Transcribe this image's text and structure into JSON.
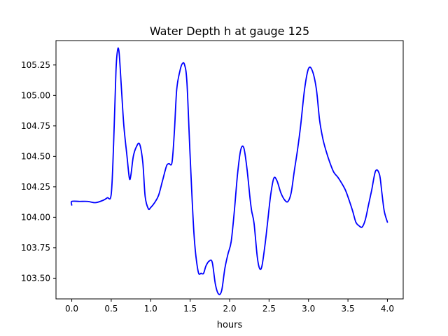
{
  "chart_data": {
    "type": "line",
    "title": "Water Depth h at gauge 125",
    "xlabel": "hours",
    "ylabel": "",
    "xlim": [
      -0.2,
      4.2
    ],
    "ylim": [
      103.33,
      105.45
    ],
    "xticks": [
      0.0,
      0.5,
      1.0,
      1.5,
      2.0,
      2.5,
      3.0,
      3.5,
      4.0
    ],
    "xtick_labels": [
      "0.0",
      "0.5",
      "1.0",
      "1.5",
      "2.0",
      "2.5",
      "3.0",
      "3.5",
      "4.0"
    ],
    "yticks": [
      103.5,
      103.75,
      104.0,
      104.25,
      104.5,
      104.75,
      105.0,
      105.25
    ],
    "ytick_labels": [
      "103.50",
      "103.75",
      "104.00",
      "104.25",
      "104.50",
      "104.75",
      "105.00",
      "105.25"
    ],
    "grid": false,
    "series": [
      {
        "color": "#0000ff",
        "x": [
          0.0,
          0.0,
          0.1,
          0.2,
          0.3,
          0.4,
          0.45,
          0.5,
          0.53,
          0.56,
          0.58,
          0.6,
          0.63,
          0.66,
          0.7,
          0.73,
          0.75,
          0.78,
          0.82,
          0.86,
          0.9,
          0.93,
          0.97,
          1.0,
          1.05,
          1.1,
          1.15,
          1.2,
          1.23,
          1.27,
          1.3,
          1.33,
          1.37,
          1.4,
          1.43,
          1.46,
          1.5,
          1.55,
          1.6,
          1.64,
          1.67,
          1.7,
          1.74,
          1.78,
          1.82,
          1.86,
          1.9,
          1.94,
          1.98,
          2.02,
          2.06,
          2.1,
          2.14,
          2.18,
          2.22,
          2.26,
          2.28,
          2.31,
          2.35,
          2.38,
          2.41,
          2.45,
          2.48,
          2.52,
          2.56,
          2.6,
          2.65,
          2.7,
          2.74,
          2.78,
          2.82,
          2.86,
          2.9,
          2.95,
          3.0,
          3.05,
          3.1,
          3.14,
          3.18,
          3.22,
          3.27,
          3.32,
          3.37,
          3.42,
          3.47,
          3.52,
          3.56,
          3.6,
          3.64,
          3.68,
          3.72,
          3.76,
          3.8,
          3.85,
          3.9,
          3.93,
          3.96,
          4.0
        ],
        "y": [
          104.1,
          104.13,
          104.13,
          104.13,
          104.12,
          104.14,
          104.16,
          104.19,
          104.6,
          105.2,
          105.37,
          105.35,
          105.05,
          104.75,
          104.5,
          104.32,
          104.35,
          104.5,
          104.58,
          104.6,
          104.45,
          104.17,
          104.07,
          104.08,
          104.12,
          104.18,
          104.3,
          104.42,
          104.44,
          104.45,
          104.7,
          105.05,
          105.2,
          105.26,
          105.25,
          105.1,
          104.5,
          103.85,
          103.56,
          103.54,
          103.54,
          103.6,
          103.64,
          103.63,
          103.45,
          103.37,
          103.4,
          103.58,
          103.7,
          103.8,
          104.05,
          104.35,
          104.55,
          104.57,
          104.4,
          104.15,
          104.05,
          103.95,
          103.68,
          103.58,
          103.6,
          103.78,
          103.95,
          104.18,
          104.32,
          104.3,
          104.2,
          104.14,
          104.13,
          104.2,
          104.38,
          104.55,
          104.75,
          105.05,
          105.22,
          105.2,
          105.05,
          104.8,
          104.65,
          104.55,
          104.45,
          104.37,
          104.33,
          104.28,
          104.22,
          104.13,
          104.05,
          103.96,
          103.93,
          103.92,
          103.98,
          104.1,
          104.22,
          104.38,
          104.35,
          104.2,
          104.05,
          103.96
        ]
      }
    ]
  }
}
